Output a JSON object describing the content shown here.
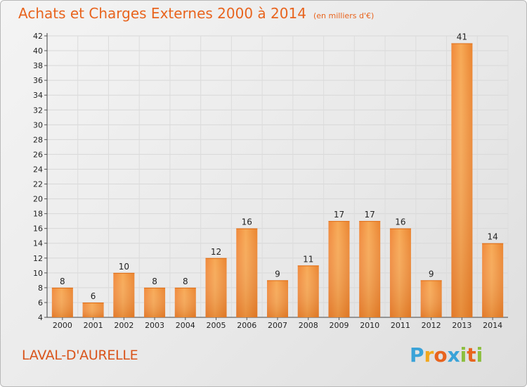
{
  "header": {
    "title": "Achats et Charges Externes 2000 à 2014",
    "unit": "(en milliers d'€)"
  },
  "footer": {
    "town": "LAVAL-D'AURELLE",
    "logo_letters": [
      "P",
      "r",
      "o",
      "x",
      "i",
      "t",
      "i"
    ],
    "logo_colors": [
      "#3aa3d8",
      "#f2a81d",
      "#e8641e",
      "#3aa3d8",
      "#8cbf3f",
      "#e8641e",
      "#8cbf3f"
    ]
  },
  "colors": {
    "bar_light": "#f5a04e",
    "bar_dark": "#e57a22",
    "title": "#e8641e"
  },
  "chart_data": {
    "type": "bar",
    "title": "Achats et Charges Externes 2000 à 2014",
    "subtitle": "(en milliers d'€)",
    "xlabel": "",
    "ylabel": "",
    "categories": [
      "2000",
      "2001",
      "2002",
      "2003",
      "2004",
      "2005",
      "2006",
      "2007",
      "2008",
      "2009",
      "2010",
      "2011",
      "2012",
      "2013",
      "2014"
    ],
    "values": [
      8,
      6,
      10,
      8,
      8,
      12,
      16,
      9,
      11,
      17,
      17,
      16,
      9,
      41,
      14
    ],
    "ylim": [
      4,
      42
    ],
    "yticks": [
      4,
      6,
      8,
      10,
      12,
      14,
      16,
      18,
      20,
      22,
      24,
      26,
      28,
      30,
      32,
      34,
      36,
      38,
      40,
      42
    ],
    "grid": true
  }
}
